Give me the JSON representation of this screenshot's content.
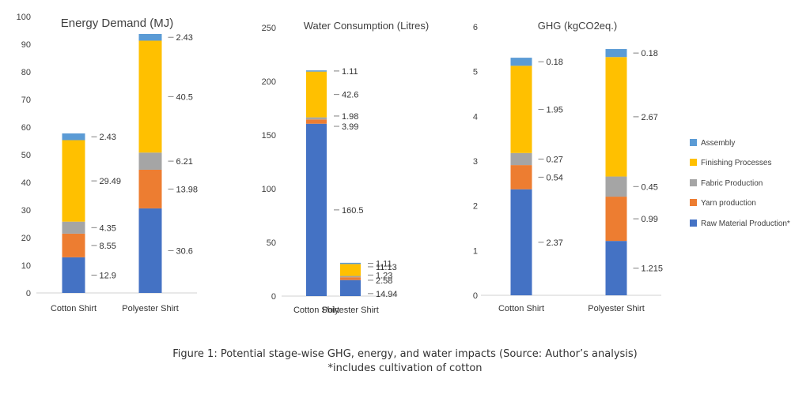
{
  "chart_data": [
    {
      "type": "bar",
      "stacked": true,
      "title": "Energy Demand (MJ)",
      "categories": [
        "Cotton Shirt",
        "Polyester Shirt"
      ],
      "ylim": [
        0,
        100
      ],
      "yticks": [
        "0",
        "10",
        "20",
        "30",
        "40",
        "50",
        "60",
        "70",
        "80",
        "90",
        "100"
      ],
      "series": [
        {
          "name": "Raw Material Production*",
          "values": [
            12.9,
            30.6
          ],
          "labels": [
            "12.9",
            "30.6"
          ]
        },
        {
          "name": "Yarn production",
          "values": [
            8.55,
            13.98
          ],
          "labels": [
            "8.55",
            "13.98"
          ]
        },
        {
          "name": "Fabric Production",
          "values": [
            4.35,
            6.21
          ],
          "labels": [
            "4.35",
            "6.21"
          ]
        },
        {
          "name": "Finishing Processes",
          "values": [
            29.49,
            40.5
          ],
          "labels": [
            "29.49",
            "40.5"
          ]
        },
        {
          "name": "Assembly",
          "values": [
            2.43,
            2.43
          ],
          "labels": [
            "2.43",
            "2.43"
          ]
        }
      ]
    },
    {
      "type": "bar",
      "stacked": true,
      "title": "Water Consumption (Litres)",
      "categories": [
        "Cotton Shirt",
        "Polyester Shirt"
      ],
      "ylim": [
        0,
        250
      ],
      "yticks": [
        "0",
        "50",
        "100",
        "150",
        "200",
        "250"
      ],
      "series": [
        {
          "name": "Raw Material Production*",
          "values": [
            160.5,
            14.94
          ],
          "labels": [
            "160.5",
            "14.94"
          ]
        },
        {
          "name": "Yarn production",
          "values": [
            3.99,
            2.58
          ],
          "labels": [
            "3.99",
            "2.58"
          ]
        },
        {
          "name": "Fabric Production",
          "values": [
            1.98,
            1.23
          ],
          "labels": [
            "1.98",
            "1.23"
          ]
        },
        {
          "name": "Finishing Processes",
          "values": [
            42.6,
            11.13
          ],
          "labels": [
            "42.6",
            "11.13"
          ]
        },
        {
          "name": "Assembly",
          "values": [
            1.11,
            1.11
          ],
          "labels": [
            "1.11",
            "1.11"
          ]
        }
      ]
    },
    {
      "type": "bar",
      "stacked": true,
      "title": "GHG (kgCO2eq.)",
      "categories": [
        "Cotton Shirt",
        "Polyester Shirt"
      ],
      "ylim": [
        0,
        6
      ],
      "yticks": [
        "0",
        "1",
        "2",
        "3",
        "4",
        "5",
        "6"
      ],
      "series": [
        {
          "name": "Raw Material Production*",
          "values": [
            2.37,
            1.215
          ],
          "labels": [
            "2.37",
            "1.215"
          ]
        },
        {
          "name": "Yarn production",
          "values": [
            0.54,
            0.99
          ],
          "labels": [
            "0.54",
            "0.99"
          ]
        },
        {
          "name": "Fabric Production",
          "values": [
            0.27,
            0.45
          ],
          "labels": [
            "0.27",
            "0.45"
          ]
        },
        {
          "name": "Finishing Processes",
          "values": [
            1.95,
            2.67
          ],
          "labels": [
            "1.95",
            "2.67"
          ]
        },
        {
          "name": "Assembly",
          "values": [
            0.18,
            0.18
          ],
          "labels": [
            "0.18",
            "0.18"
          ]
        }
      ]
    }
  ],
  "series_colors": [
    "#4472C4",
    "#ED7D31",
    "#A5A5A5",
    "#FFC000",
    "#5B9BD5"
  ],
  "legend": {
    "placement": "right",
    "items": [
      "Assembly",
      "Finishing Processes",
      "Fabric Production",
      "Yarn production",
      "Raw Material Production*"
    ]
  },
  "caption": {
    "line1": "Figure 1: Potential stage-wise GHG, energy, and water impacts (Source: Author’s analysis)",
    "line2": "*includes cultivation of cotton"
  }
}
